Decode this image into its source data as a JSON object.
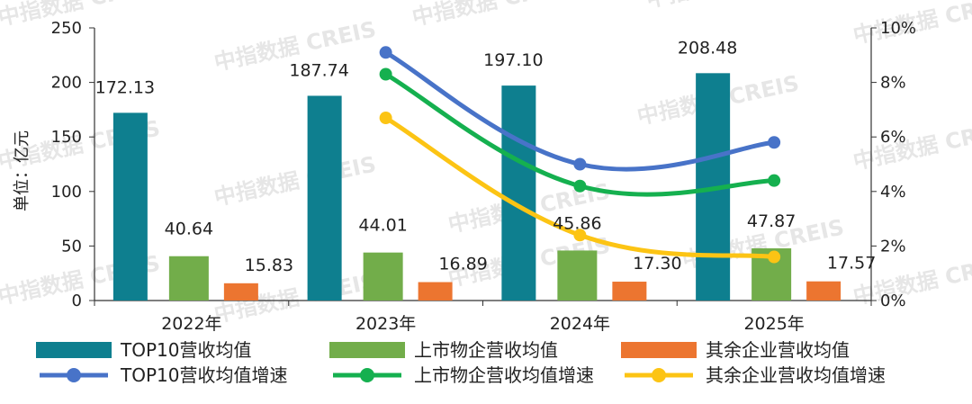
{
  "chart_data": {
    "type": "bar",
    "categories": [
      "2022年",
      "2023年",
      "2024年",
      "2025年"
    ],
    "ylabel": "单位：亿元",
    "ylim": [
      0,
      250
    ],
    "yticks": [
      0,
      50,
      100,
      150,
      200,
      250
    ],
    "y2lim": [
      0,
      10
    ],
    "y2ticks": [
      "0%",
      "2%",
      "4%",
      "6%",
      "8%",
      "10%"
    ],
    "series": [
      {
        "name": "TOP10营收均值",
        "kind": "bar",
        "color": "#0e7f8f",
        "values": [
          172.13,
          187.74,
          197.1,
          208.48
        ],
        "labels": [
          "172.13",
          "187.74",
          "197.10",
          "208.48"
        ]
      },
      {
        "name": "上市物企营收均值",
        "kind": "bar",
        "color": "#72ad4a",
        "values": [
          40.64,
          44.01,
          45.86,
          47.87
        ],
        "labels": [
          "40.64",
          "44.01",
          "45.86",
          "47.87"
        ]
      },
      {
        "name": "其余企业营收均值",
        "kind": "bar",
        "color": "#ec7530",
        "values": [
          15.83,
          16.89,
          17.3,
          17.57
        ],
        "labels": [
          "15.83",
          "16.89",
          "17.30",
          "17.57"
        ]
      },
      {
        "name": "TOP10营收均值增速",
        "kind": "line",
        "axis": "right",
        "color": "#4873c8",
        "values": [
          null,
          9.1,
          5.0,
          5.8
        ]
      },
      {
        "name": "上市物企营收均值增速",
        "kind": "line",
        "axis": "right",
        "color": "#15b04f",
        "values": [
          null,
          8.3,
          4.2,
          4.4
        ]
      },
      {
        "name": "其余企业营收均值增速",
        "kind": "line",
        "axis": "right",
        "color": "#fcc414",
        "values": [
          null,
          6.7,
          2.4,
          1.6
        ]
      }
    ],
    "legend_position": "bottom",
    "grid": false,
    "watermark": "中指数据 CREIS"
  }
}
